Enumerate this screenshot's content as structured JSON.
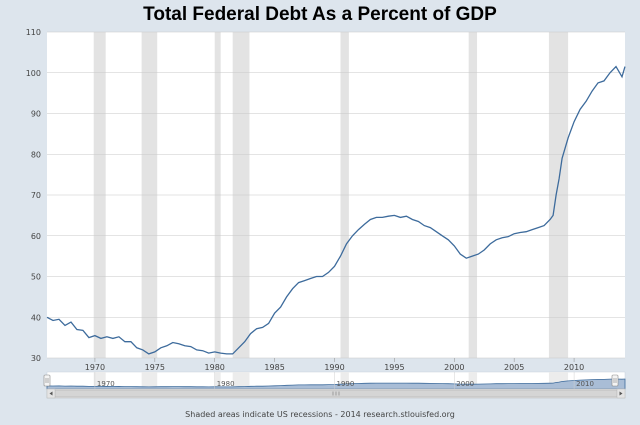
{
  "chart_data": {
    "type": "line",
    "title": "Total Federal Debt As a Percent of GDP",
    "xlabel": "",
    "ylabel": "",
    "xlim": [
      1966,
      2014.25
    ],
    "ylim": [
      30,
      110
    ],
    "y_ticks": [
      30,
      40,
      50,
      60,
      70,
      80,
      90,
      100,
      110
    ],
    "x_ticks": [
      1970,
      1975,
      1980,
      1985,
      1990,
      1995,
      2000,
      2005,
      2010
    ],
    "grid": true,
    "legend": "none",
    "recessions": [
      {
        "start": 1969.9,
        "end": 1970.9
      },
      {
        "start": 1973.9,
        "end": 1975.2
      },
      {
        "start": 1980.0,
        "end": 1980.5
      },
      {
        "start": 1981.5,
        "end": 1982.9
      },
      {
        "start": 1990.5,
        "end": 1991.2
      },
      {
        "start": 2001.2,
        "end": 2001.9
      },
      {
        "start": 2007.9,
        "end": 2009.5
      }
    ],
    "navigator_ticks": [
      1970,
      1980,
      1990,
      2000,
      2010
    ],
    "series": [
      {
        "name": "Total Federal Debt As a Percent of GDP",
        "color": "#3d6b9c",
        "x": [
          1966.0,
          1966.5,
          1967.0,
          1967.5,
          1968.0,
          1968.5,
          1969.0,
          1969.5,
          1970.0,
          1970.5,
          1971.0,
          1971.5,
          1972.0,
          1972.5,
          1973.0,
          1973.5,
          1974.0,
          1974.5,
          1975.0,
          1975.5,
          1976.0,
          1976.5,
          1977.0,
          1977.5,
          1978.0,
          1978.5,
          1979.0,
          1979.5,
          1980.0,
          1980.5,
          1981.0,
          1981.5,
          1982.0,
          1982.5,
          1983.0,
          1983.5,
          1984.0,
          1984.5,
          1985.0,
          1985.5,
          1986.0,
          1986.5,
          1987.0,
          1987.5,
          1988.0,
          1988.5,
          1989.0,
          1989.5,
          1990.0,
          1990.5,
          1991.0,
          1991.5,
          1992.0,
          1992.5,
          1993.0,
          1993.5,
          1994.0,
          1994.5,
          1995.0,
          1995.5,
          1996.0,
          1996.5,
          1997.0,
          1997.5,
          1998.0,
          1998.5,
          1999.0,
          1999.5,
          2000.0,
          2000.5,
          2001.0,
          2001.5,
          2002.0,
          2002.5,
          2003.0,
          2003.5,
          2004.0,
          2004.5,
          2005.0,
          2005.5,
          2006.0,
          2006.5,
          2007.0,
          2007.5,
          2008.0,
          2008.25,
          2008.5,
          2008.75,
          2009.0,
          2009.5,
          2010.0,
          2010.5,
          2011.0,
          2011.5,
          2012.0,
          2012.5,
          2013.0,
          2013.5,
          2014.0,
          2014.25
        ],
        "values": [
          40.0,
          39.2,
          39.5,
          38.0,
          38.8,
          37.0,
          36.8,
          35.0,
          35.5,
          34.8,
          35.2,
          34.8,
          35.2,
          34.0,
          34.0,
          32.5,
          32.0,
          31.0,
          31.5,
          32.5,
          33.0,
          33.8,
          33.5,
          33.0,
          32.8,
          32.0,
          31.8,
          31.2,
          31.5,
          31.2,
          31.0,
          31.0,
          32.5,
          34.0,
          36.0,
          37.2,
          37.5,
          38.5,
          41.0,
          42.5,
          45.0,
          47.0,
          48.5,
          49.0,
          49.5,
          50.0,
          50.0,
          51.0,
          52.5,
          55.0,
          58.0,
          60.0,
          61.5,
          62.8,
          64.0,
          64.5,
          64.5,
          64.8,
          65.0,
          64.5,
          64.8,
          64.0,
          63.5,
          62.5,
          62.0,
          61.0,
          60.0,
          59.0,
          57.5,
          55.5,
          54.5,
          55.0,
          55.5,
          56.5,
          58.0,
          59.0,
          59.5,
          59.8,
          60.5,
          60.8,
          61.0,
          61.5,
          62.0,
          62.5,
          64.0,
          65.0,
          70.0,
          74.0,
          79.0,
          84.0,
          88.0,
          91.0,
          93.0,
          95.5,
          97.5,
          98.0,
          100.0,
          101.5,
          99.0,
          101.5
        ]
      }
    ]
  },
  "footer": {
    "text": "Shaded areas indicate US recessions - 2014 research.stlouisfed.org"
  }
}
